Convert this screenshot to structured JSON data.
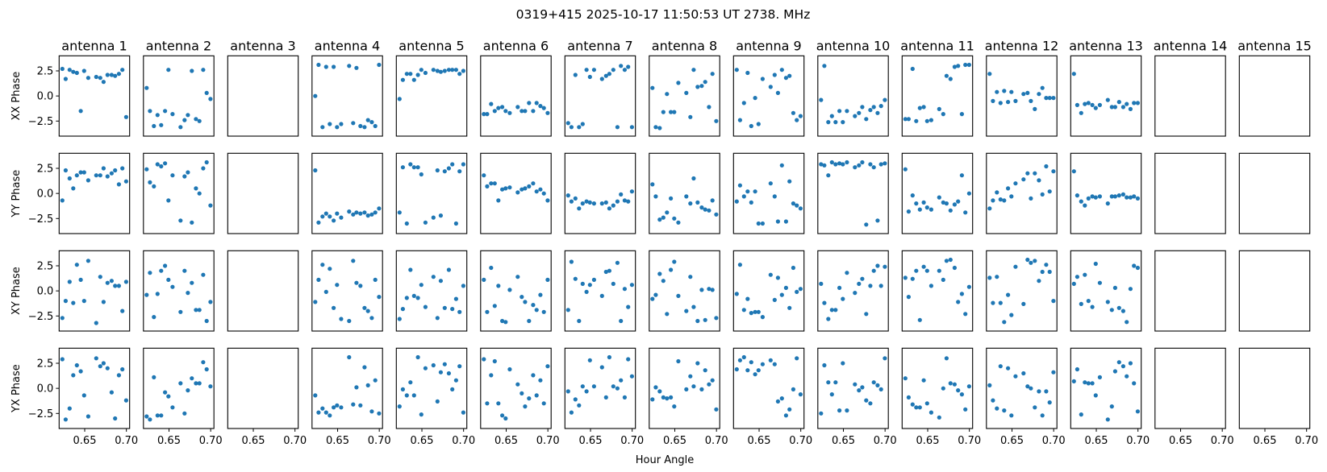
{
  "chart_data": {
    "type": "scatter",
    "title": "0319+415  2025-10-17 11:50:53 UT  2738. MHz",
    "xlabel": "Hour Angle",
    "row_labels": [
      "XX Phase",
      "YY Phase",
      "XY Phase",
      "YX Phase"
    ],
    "xlim": [
      0.6193,
      0.7039
    ],
    "ylim": [
      -4,
      4
    ],
    "xticks": [
      0.65,
      0.7
    ],
    "xtick_labels": [
      "0.65",
      "0.70"
    ],
    "yticks": [
      2.5,
      0.0,
      -2.5
    ],
    "ytick_labels": [
      "2.5",
      "0.0",
      "−2.5"
    ],
    "marker_color": "#1f77b4",
    "x": [
      0.6232,
      0.6271,
      0.6319,
      0.6362,
      0.6406,
      0.6452,
      0.6493,
      0.6542,
      0.6638,
      0.6687,
      0.6726,
      0.6774,
      0.6823,
      0.6865,
      0.691,
      0.6952,
      0.6997
    ],
    "antennas": [
      {
        "name": "antenna 1",
        "series": [
          [
            2.7,
            1.7,
            2.6,
            2.4,
            2.3,
            -1.5,
            2.5,
            1.8,
            1.9,
            1.8,
            1.4,
            2.1,
            2.1,
            2.0,
            2.2,
            2.6,
            -2.1
          ],
          [
            -0.7,
            2.3,
            1.5,
            0.5,
            1.8,
            2.1,
            2.1,
            1.3,
            1.8,
            1.8,
            2.5,
            1.7,
            2.0,
            2.3,
            0.9,
            2.5,
            1.2
          ],
          [
            -2.7,
            -1.0,
            0.9,
            -1.2,
            2.6,
            1.1,
            -1.0,
            3.0,
            -3.2,
            1.4,
            -1.1,
            0.8,
            1.0,
            0.5,
            0.5,
            -2.0,
            0.9
          ],
          [
            2.9,
            -3.1,
            -2.0,
            1.3,
            2.3,
            1.7,
            -0.7,
            -2.8,
            3.0,
            2.2,
            2.5,
            2.0,
            -0.4,
            -3.0,
            1.3,
            1.9,
            -1.2
          ]
        ]
      },
      {
        "name": "antenna 2",
        "series": [
          [
            0.8,
            -1.5,
            -3.0,
            -1.9,
            -2.9,
            -1.5,
            2.6,
            -1.8,
            -3.1,
            -2.4,
            -1.9,
            2.5,
            -2.3,
            -2.5,
            2.6,
            0.3,
            -0.3
          ],
          [
            2.4,
            1.1,
            0.7,
            2.9,
            2.7,
            3.0,
            -0.7,
            1.8,
            -2.7,
            1.7,
            2.1,
            -2.9,
            0.5,
            0.0,
            2.5,
            3.1,
            -1.2
          ],
          [
            -0.4,
            1.8,
            -2.6,
            -0.3,
            2.0,
            2.5,
            1.1,
            0.4,
            -2.1,
            2.0,
            -0.2,
            0.8,
            -1.9,
            -1.9,
            1.6,
            -3.0,
            -1.1
          ],
          [
            -2.8,
            -3.1,
            1.1,
            -2.7,
            -2.7,
            -0.4,
            -0.8,
            -1.9,
            0.5,
            -2.5,
            -0.2,
            1.0,
            0.5,
            0.5,
            2.6,
            1.9,
            0.2
          ]
        ]
      },
      {
        "name": "antenna 3",
        "series": [
          [],
          [],
          [],
          []
        ]
      },
      {
        "name": "antenna 4",
        "series": [
          [
            0.0,
            3.1,
            -3.1,
            2.9,
            -2.8,
            2.9,
            -3.1,
            -2.8,
            3.0,
            -2.7,
            2.8,
            -3.0,
            -3.1,
            -2.4,
            -2.6,
            -3.0,
            3.1
          ],
          [
            2.3,
            -2.9,
            -2.3,
            -2.0,
            -2.3,
            -2.7,
            -2.0,
            -2.4,
            -1.8,
            -2.1,
            -1.9,
            -2.0,
            -1.9,
            -2.2,
            -2.1,
            -1.9,
            -1.5
          ],
          [
            -1.1,
            1.1,
            2.6,
            -0.1,
            2.2,
            -1.7,
            0.6,
            -2.8,
            -3.0,
            3.0,
            0.8,
            0.5,
            -1.7,
            -2.0,
            -2.7,
            1.1,
            -0.6
          ],
          [
            -0.7,
            -2.4,
            -2.0,
            -2.4,
            -2.7,
            -1.9,
            -1.7,
            -1.9,
            3.1,
            -1.6,
            0.1,
            -1.7,
            2.1,
            0.3,
            -2.3,
            0.8,
            -2.5
          ]
        ]
      },
      {
        "name": "antenna 5",
        "series": [
          [
            -0.3,
            1.6,
            2.2,
            2.2,
            1.6,
            2.1,
            2.6,
            2.3,
            2.6,
            2.5,
            2.4,
            2.5,
            2.6,
            2.6,
            2.6,
            2.2,
            2.5
          ],
          [
            -1.9,
            2.6,
            -3.0,
            2.9,
            2.6,
            2.6,
            1.9,
            -2.9,
            -2.4,
            2.3,
            -2.2,
            2.2,
            2.5,
            2.9,
            -3.0,
            2.2,
            2.9
          ],
          [
            -2.8,
            -1.8,
            -0.7,
            2.1,
            -0.5,
            -0.7,
            0.6,
            -1.6,
            1.4,
            -2.7,
            1.0,
            -1.7,
            2.1,
            -1.8,
            -0.8,
            -2.1,
            0.5
          ],
          [
            -1.8,
            -0.1,
            -0.7,
            0.6,
            -0.7,
            3.1,
            -2.6,
            2.0,
            2.3,
            -1.3,
            1.6,
            2.4,
            1.5,
            -0.1,
            0.8,
            2.2,
            -2.4
          ]
        ]
      },
      {
        "name": "antenna 6",
        "series": [
          [
            -1.8,
            -1.8,
            -0.8,
            -1.5,
            -1.2,
            -1.1,
            -1.5,
            -1.7,
            -1.1,
            -1.5,
            -1.5,
            -0.7,
            -1.5,
            -0.7,
            -1.0,
            -1.2,
            -1.7
          ],
          [
            1.8,
            0.7,
            1.0,
            1.0,
            -0.7,
            0.4,
            0.5,
            0.6,
            0.1,
            0.4,
            0.5,
            0.7,
            1.0,
            0.2,
            0.4,
            0.0,
            -0.7
          ],
          [
            1.1,
            -2.1,
            2.3,
            -1.5,
            0.5,
            -3.0,
            -3.1,
            0.1,
            1.4,
            -0.6,
            -1.1,
            -3.0,
            -1.4,
            -1.9,
            -0.4,
            -2.1,
            1.1
          ],
          [
            2.9,
            -1.5,
            1.3,
            2.7,
            -1.5,
            -2.7,
            -3.0,
            1.9,
            0.4,
            -0.5,
            -1.8,
            -1.0,
            1.3,
            -0.7,
            0.8,
            -1.5,
            2.2
          ]
        ]
      },
      {
        "name": "antenna 7",
        "series": [
          [
            -2.7,
            -3.1,
            2.1,
            -3.1,
            -2.8,
            2.6,
            1.9,
            2.6,
            1.7,
            2.0,
            2.2,
            2.6,
            -3.1,
            3.0,
            2.6,
            2.9,
            -3.1
          ],
          [
            -0.2,
            -0.8,
            -0.5,
            -1.5,
            -1.0,
            -0.8,
            -0.9,
            -1.0,
            -1.0,
            -0.9,
            -1.5,
            -1.2,
            -0.8,
            -0.1,
            -0.7,
            -0.8,
            0.2
          ],
          [
            -1.9,
            2.9,
            1.2,
            -3.0,
            0.7,
            -0.1,
            0.6,
            1.1,
            -0.5,
            1.9,
            2.0,
            0.7,
            2.8,
            -3.0,
            0.2,
            -1.6,
            0.6
          ],
          [
            -0.3,
            -2.4,
            -1.1,
            -1.7,
            0.2,
            -0.3,
            2.8,
            0.2,
            2.1,
            -0.9,
            3.1,
            0.2,
            0.0,
            0.8,
            -0.9,
            2.9,
            1.2
          ]
        ]
      },
      {
        "name": "antenna 8",
        "series": [
          [
            0.8,
            -3.1,
            -3.2,
            -1.6,
            0.2,
            -1.6,
            -1.6,
            1.3,
            0.3,
            -2.1,
            2.6,
            0.9,
            1.0,
            1.4,
            -1.1,
            2.2,
            -2.5
          ],
          [
            0.9,
            -0.3,
            -2.6,
            -2.4,
            -1.9,
            -0.5,
            -2.5,
            -2.9,
            -0.3,
            -1.0,
            1.5,
            -0.9,
            -1.4,
            -1.6,
            -1.7,
            -0.7,
            -2.1
          ],
          [
            -0.8,
            -0.4,
            1.7,
            1.0,
            -2.3,
            2.1,
            2.9,
            -0.5,
            -2.0,
            1.4,
            -1.6,
            -3.0,
            0.1,
            -2.9,
            0.2,
            0.1,
            -2.7
          ],
          [
            -1.1,
            0.1,
            -0.3,
            -0.9,
            -1.0,
            -0.9,
            -1.8,
            2.7,
            -0.1,
            1.2,
            0.2,
            2.5,
            -0.1,
            1.8,
            0.4,
            0.8,
            -2.1
          ]
        ]
      },
      {
        "name": "antenna 9",
        "series": [
          [
            2.6,
            -2.4,
            -0.7,
            2.3,
            -3.0,
            -0.2,
            -2.8,
            1.7,
            0.9,
            2.1,
            0.3,
            2.6,
            1.8,
            2.0,
            -1.7,
            -2.4,
            -2.0
          ],
          [
            -0.8,
            0.8,
            -0.3,
            0.2,
            -0.9,
            0.2,
            -3.0,
            -3.0,
            1.0,
            -0.3,
            -2.8,
            2.8,
            -2.8,
            1.2,
            -1.0,
            -1.2,
            -1.5
          ],
          [
            -0.3,
            2.6,
            -1.9,
            -0.8,
            -2.2,
            -2.1,
            -2.1,
            -2.6,
            1.6,
            -0.9,
            1.3,
            -0.4,
            0.3,
            -1.7,
            2.3,
            -0.1,
            0.2
          ],
          [
            1.9,
            2.8,
            3.1,
            1.8,
            2.6,
            1.4,
            1.8,
            2.4,
            2.8,
            2.4,
            -1.3,
            -1.0,
            -2.7,
            -2.1,
            -0.1,
            3.0,
            -0.6
          ]
        ]
      },
      {
        "name": "antenna 10",
        "series": [
          [
            -0.4,
            3.0,
            -2.6,
            -2.0,
            -2.6,
            -1.5,
            -2.6,
            -1.5,
            -2.0,
            -1.7,
            -1.1,
            -2.3,
            -1.4,
            -1.1,
            -1.7,
            -1.0,
            -0.4
          ],
          [
            2.9,
            2.8,
            1.8,
            3.1,
            2.9,
            3.0,
            2.9,
            3.1,
            2.6,
            2.8,
            3.1,
            -3.1,
            2.9,
            2.6,
            -2.7,
            2.9,
            3.0
          ],
          [
            0.7,
            -1.2,
            -2.8,
            -1.9,
            -1.9,
            0.3,
            -0.8,
            1.8,
            -0.2,
            0.7,
            1.2,
            -2.3,
            0.5,
            2.0,
            2.5,
            0.5,
            2.4
          ],
          [
            -2.5,
            2.3,
            0.6,
            -0.6,
            0.6,
            -2.2,
            2.5,
            -2.2,
            0.4,
            -0.2,
            0.1,
            -1.2,
            -1.5,
            0.6,
            0.3,
            -0.1,
            3.0
          ]
        ]
      },
      {
        "name": "antenna 11",
        "series": [
          [
            -2.3,
            -2.3,
            2.7,
            -2.5,
            -1.2,
            -1.1,
            -2.5,
            -2.4,
            -1.3,
            -1.8,
            2.0,
            1.7,
            2.9,
            3.0,
            -1.8,
            3.1,
            3.1
          ],
          [
            2.4,
            -1.8,
            -0.2,
            -1.0,
            -1.6,
            -0.9,
            -1.4,
            -1.6,
            -0.4,
            -0.9,
            -1.0,
            -1.7,
            -1.1,
            -0.8,
            1.8,
            -1.9,
            0.0
          ],
          [
            1.3,
            -0.6,
            1.2,
            2.0,
            -2.9,
            2.4,
            2.0,
            0.5,
            2.0,
            1.1,
            3.0,
            3.1,
            2.3,
            -1.1,
            -0.3,
            -2.3,
            0.4
          ],
          [
            1.0,
            -0.9,
            -1.6,
            -1.9,
            -1.9,
            0.8,
            -1.5,
            -2.4,
            -2.9,
            0.0,
            3.0,
            0.5,
            0.4,
            -0.2,
            -0.6,
            -2.1,
            0.2
          ]
        ]
      },
      {
        "name": "antenna 12",
        "series": [
          [
            2.2,
            -0.5,
            0.4,
            -0.7,
            0.5,
            -0.6,
            0.4,
            -0.5,
            0.2,
            0.3,
            -0.5,
            -1.3,
            0.2,
            0.8,
            -0.2,
            -0.2,
            -0.2
          ],
          [
            -1.5,
            -0.7,
            0.1,
            -0.6,
            -0.7,
            0.5,
            -0.3,
            1.0,
            1.4,
            2.0,
            -0.5,
            2.0,
            1.3,
            -0.1,
            2.7,
            0.2,
            2.2
          ],
          [
            1.3,
            -1.2,
            1.4,
            -1.2,
            -3.1,
            -0.4,
            -2.4,
            2.4,
            -1.3,
            3.1,
            2.8,
            3.0,
            1.0,
            1.9,
            2.6,
            1.9,
            -1.0
          ],
          [
            0.3,
            -1.2,
            -2.0,
            2.2,
            -2.2,
            2.0,
            -2.7,
            1.2,
            1.5,
            0.2,
            0.0,
            -1.9,
            -0.3,
            -2.7,
            -0.3,
            -1.4,
            1.6
          ]
        ]
      },
      {
        "name": "antenna 13",
        "series": [
          [
            2.2,
            -0.9,
            -1.7,
            -0.8,
            -0.7,
            -0.9,
            -1.2,
            -0.9,
            -0.4,
            -1.1,
            -1.1,
            -0.6,
            -1.1,
            -0.8,
            -1.3,
            -0.7,
            -0.7
          ],
          [
            2.2,
            -0.2,
            -0.8,
            -1.2,
            -0.5,
            -0.3,
            -0.4,
            -0.3,
            -1.0,
            -0.3,
            -0.3,
            -0.2,
            -0.1,
            -0.4,
            -0.4,
            -0.3,
            -0.5
          ],
          [
            0.7,
            1.4,
            -1.3,
            1.6,
            -1.0,
            -1.6,
            2.7,
            0.8,
            -1.1,
            -1.9,
            0.3,
            -1.7,
            -2.0,
            -3.1,
            0.2,
            2.5,
            2.3
          ],
          [
            0.7,
            1.9,
            -2.6,
            0.6,
            0.5,
            0.5,
            -0.7,
            1.1,
            -3.1,
            -1.8,
            1.7,
            2.6,
            2.2,
            1.2,
            2.5,
            0.5,
            -2.3
          ]
        ]
      },
      {
        "name": "antenna 14",
        "series": [
          [],
          [],
          [],
          []
        ]
      },
      {
        "name": "antenna 15",
        "series": [
          [],
          [],
          [],
          []
        ]
      }
    ]
  }
}
